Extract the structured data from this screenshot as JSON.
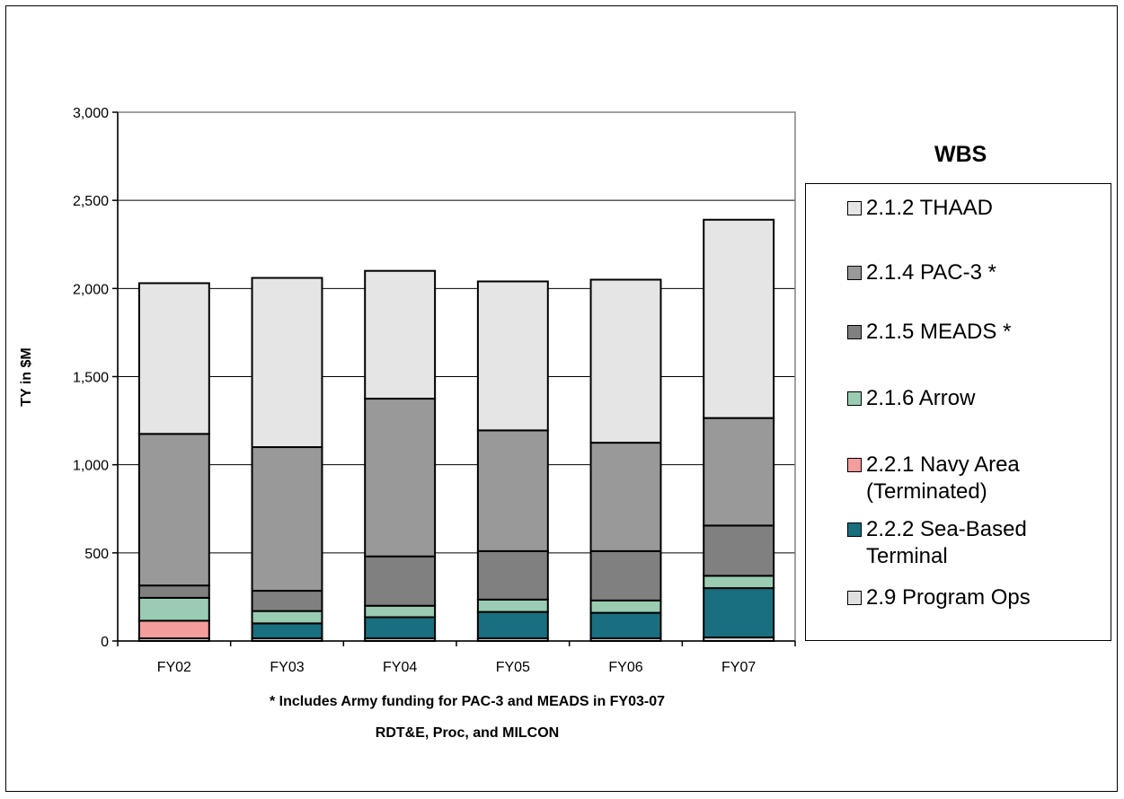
{
  "chart_data": {
    "type": "bar",
    "stacked": true,
    "categories": [
      "FY02",
      "FY03",
      "FY04",
      "FY05",
      "FY06",
      "FY07"
    ],
    "series": [
      {
        "name": "2.9 Program Ops",
        "color": "#e0e0e0",
        "values": [
          15,
          15,
          15,
          15,
          15,
          20
        ]
      },
      {
        "name": "2.2.2 Sea-Based Terminal",
        "color": "#1a6f7f",
        "values": [
          0,
          85,
          120,
          150,
          145,
          280
        ]
      },
      {
        "name": "2.2.1 Navy Area (Terminated)",
        "color": "#f49d9d",
        "values": [
          100,
          0,
          0,
          0,
          0,
          0
        ]
      },
      {
        "name": "2.1.6 Arrow",
        "color": "#99ccb1",
        "values": [
          130,
          70,
          65,
          70,
          70,
          70
        ]
      },
      {
        "name": "2.1.5 MEADS *",
        "color": "#808080",
        "values": [
          70,
          115,
          280,
          275,
          280,
          285
        ]
      },
      {
        "name": "2.1.4 PAC-3 *",
        "color": "#999999",
        "values": [
          860,
          815,
          895,
          685,
          615,
          610
        ]
      },
      {
        "name": "2.1.2 THAAD",
        "color": "#e5e5e5",
        "values": [
          855,
          960,
          725,
          845,
          925,
          1125
        ]
      }
    ],
    "ylim": [
      0,
      3000
    ],
    "yticks": [
      0,
      500,
      1000,
      1500,
      2000,
      2500,
      3000
    ],
    "ytick_labels": [
      "0",
      "500",
      "1,000",
      "1,500",
      "2,000",
      "2,500",
      "3,000"
    ],
    "ylabel": "TY in $M",
    "xlabel": "",
    "grid": true,
    "legend_position": "right",
    "legend_title": "WBS",
    "legend": [
      {
        "label": "2.1.2 THAAD",
        "color": "#e5e5e5"
      },
      {
        "label": "2.1.4 PAC-3 *",
        "color": "#999999"
      },
      {
        "label": "2.1.5 MEADS *",
        "color": "#808080"
      },
      {
        "label": "2.1.6 Arrow",
        "color": "#99ccb1"
      },
      {
        "label": "2.2.1 Navy Area (Terminated)",
        "color": "#f49d9d"
      },
      {
        "label": "2.2.2 Sea-Based Terminal",
        "color": "#1a6f7f"
      },
      {
        "label": "2.9 Program Ops",
        "color": "#e0e0e0"
      }
    ],
    "footnotes": [
      "* Includes Army funding for PAC-3 and MEADS in FY03-07",
      "RDT&E, Proc, and MILCON"
    ],
    "plot_background": "#ffffff"
  }
}
